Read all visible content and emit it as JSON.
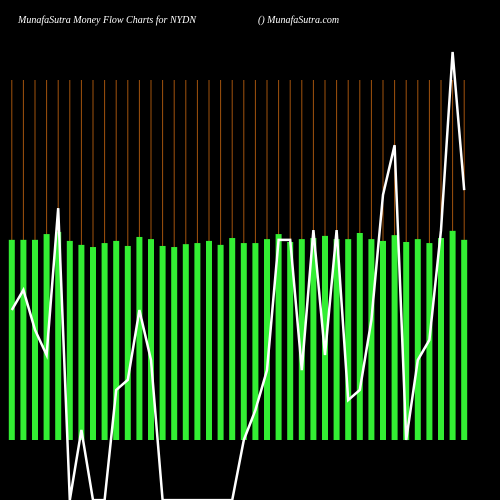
{
  "chart_data": {
    "type": "bar",
    "title": "MunafaSutra  Money Flow  Charts for NYDN",
    "subtitle": "() MunafaSutra.com",
    "background": "#000000",
    "vline_color": "#a0520d",
    "categories": [
      null,
      null,
      null,
      null,
      null,
      null,
      null,
      null,
      null,
      null,
      null,
      null,
      null,
      null,
      null,
      null,
      null,
      null,
      null,
      null,
      null,
      null,
      null,
      null,
      null,
      null,
      null,
      null,
      null,
      null,
      null,
      null,
      null,
      null,
      null,
      null,
      null,
      null,
      null,
      null
    ],
    "ylim": [
      -17,
      108
    ],
    "series": [
      {
        "type": "bar",
        "color": "#33ee33",
        "values": [
          55.6,
          55.6,
          55.6,
          57.2,
          57.8,
          55.3,
          54.2,
          53.6,
          54.7,
          55.3,
          53.9,
          56.4,
          55.8,
          53.9,
          53.6,
          54.4,
          54.7,
          55.3,
          54.2,
          56.1,
          54.7,
          54.7,
          55.8,
          57.2,
          55.0,
          55.8,
          56.1,
          56.7,
          55.8,
          55.8,
          57.5,
          55.8,
          55.3,
          56.9,
          55.0,
          55.8,
          54.7,
          56.1,
          58.1,
          55.6
        ]
      },
      {
        "type": "line",
        "color": "#ffffff",
        "values": [
          36.1,
          41.7,
          30.6,
          23.6,
          64.4,
          -16.7,
          2.8,
          -16.7,
          -16.7,
          13.9,
          16.7,
          36.1,
          22.2,
          -16.7,
          -16.7,
          -16.7,
          -16.7,
          -16.7,
          -16.7,
          -16.7,
          0,
          8.3,
          19.4,
          55.6,
          55.6,
          19.4,
          58.3,
          23.6,
          58.3,
          11.1,
          13.9,
          33.3,
          68.1,
          81.9,
          0,
          22.2,
          27.8,
          58.3,
          107.8,
          69.4
        ]
      }
    ]
  }
}
